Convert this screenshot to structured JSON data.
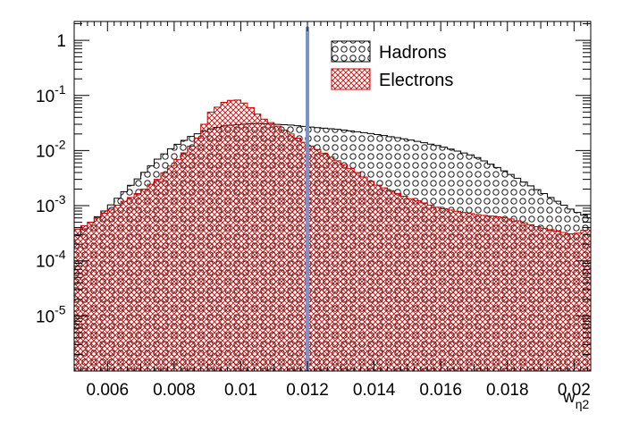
{
  "chart_data": {
    "type": "histogram",
    "xlabel": "w",
    "xlabel_subscript": "η2",
    "xlim": [
      0.005,
      0.0205
    ],
    "ylim": [
      1e-06,
      2.2
    ],
    "yscale": "log",
    "x_ticks": [
      0.006,
      0.008,
      0.01,
      0.012,
      0.014,
      0.016,
      0.018,
      0.02
    ],
    "x_tick_labels": [
      "0.006",
      "0.008",
      "0.01",
      "0.012",
      "0.014",
      "0.016",
      "0.018",
      "0.02"
    ],
    "y_ticks": [
      {
        "value": 1,
        "base": "1",
        "exp": ""
      },
      {
        "value": 0.1,
        "base": "10",
        "exp": "-1"
      },
      {
        "value": 0.01,
        "base": "10",
        "exp": "-2"
      },
      {
        "value": 0.001,
        "base": "10",
        "exp": "-3"
      },
      {
        "value": 0.0001,
        "base": "10",
        "exp": "-4"
      },
      {
        "value": 1e-05,
        "base": "10",
        "exp": "-5"
      }
    ],
    "legend_position": "top-right",
    "cut_line": {
      "x": 0.012,
      "color": "#7a93c8"
    },
    "series": [
      {
        "name": "Hadrons",
        "color": "#000000",
        "pattern": "circles",
        "points": [
          [
            0.005,
            0.00025
          ],
          [
            0.0055,
            0.0005
          ],
          [
            0.006,
            0.0009
          ],
          [
            0.0065,
            0.0018
          ],
          [
            0.007,
            0.0035
          ],
          [
            0.0075,
            0.007
          ],
          [
            0.008,
            0.012
          ],
          [
            0.0085,
            0.018
          ],
          [
            0.009,
            0.024
          ],
          [
            0.0095,
            0.028
          ],
          [
            0.01,
            0.03
          ],
          [
            0.0105,
            0.031
          ],
          [
            0.011,
            0.03
          ],
          [
            0.0115,
            0.029
          ],
          [
            0.012,
            0.027
          ],
          [
            0.013,
            0.024
          ],
          [
            0.014,
            0.02
          ],
          [
            0.015,
            0.016
          ],
          [
            0.016,
            0.012
          ],
          [
            0.017,
            0.008
          ],
          [
            0.018,
            0.004
          ],
          [
            0.019,
            0.0018
          ],
          [
            0.0195,
            0.0012
          ],
          [
            0.02,
            0.0008
          ],
          [
            0.0205,
            0.0006
          ]
        ]
      },
      {
        "name": "Electrons",
        "color": "#cc0000",
        "pattern": "crosshatch",
        "points": [
          [
            0.005,
            0.00035
          ],
          [
            0.0055,
            0.0005
          ],
          [
            0.006,
            0.0008
          ],
          [
            0.0065,
            0.0012
          ],
          [
            0.007,
            0.0018
          ],
          [
            0.0075,
            0.003
          ],
          [
            0.008,
            0.006
          ],
          [
            0.0085,
            0.012
          ],
          [
            0.0088,
            0.02
          ],
          [
            0.009,
            0.045
          ],
          [
            0.0095,
            0.075
          ],
          [
            0.0098,
            0.085
          ],
          [
            0.01,
            0.08
          ],
          [
            0.0103,
            0.06
          ],
          [
            0.0106,
            0.04
          ],
          [
            0.011,
            0.03
          ],
          [
            0.0115,
            0.02
          ],
          [
            0.012,
            0.013
          ],
          [
            0.0125,
            0.009
          ],
          [
            0.013,
            0.006
          ],
          [
            0.0135,
            0.004
          ],
          [
            0.014,
            0.0025
          ],
          [
            0.015,
            0.0014
          ],
          [
            0.016,
            0.0009
          ],
          [
            0.017,
            0.0007
          ],
          [
            0.018,
            0.0006
          ],
          [
            0.019,
            0.0004
          ],
          [
            0.02,
            0.0003
          ],
          [
            0.0205,
            0.0004
          ]
        ]
      }
    ]
  }
}
